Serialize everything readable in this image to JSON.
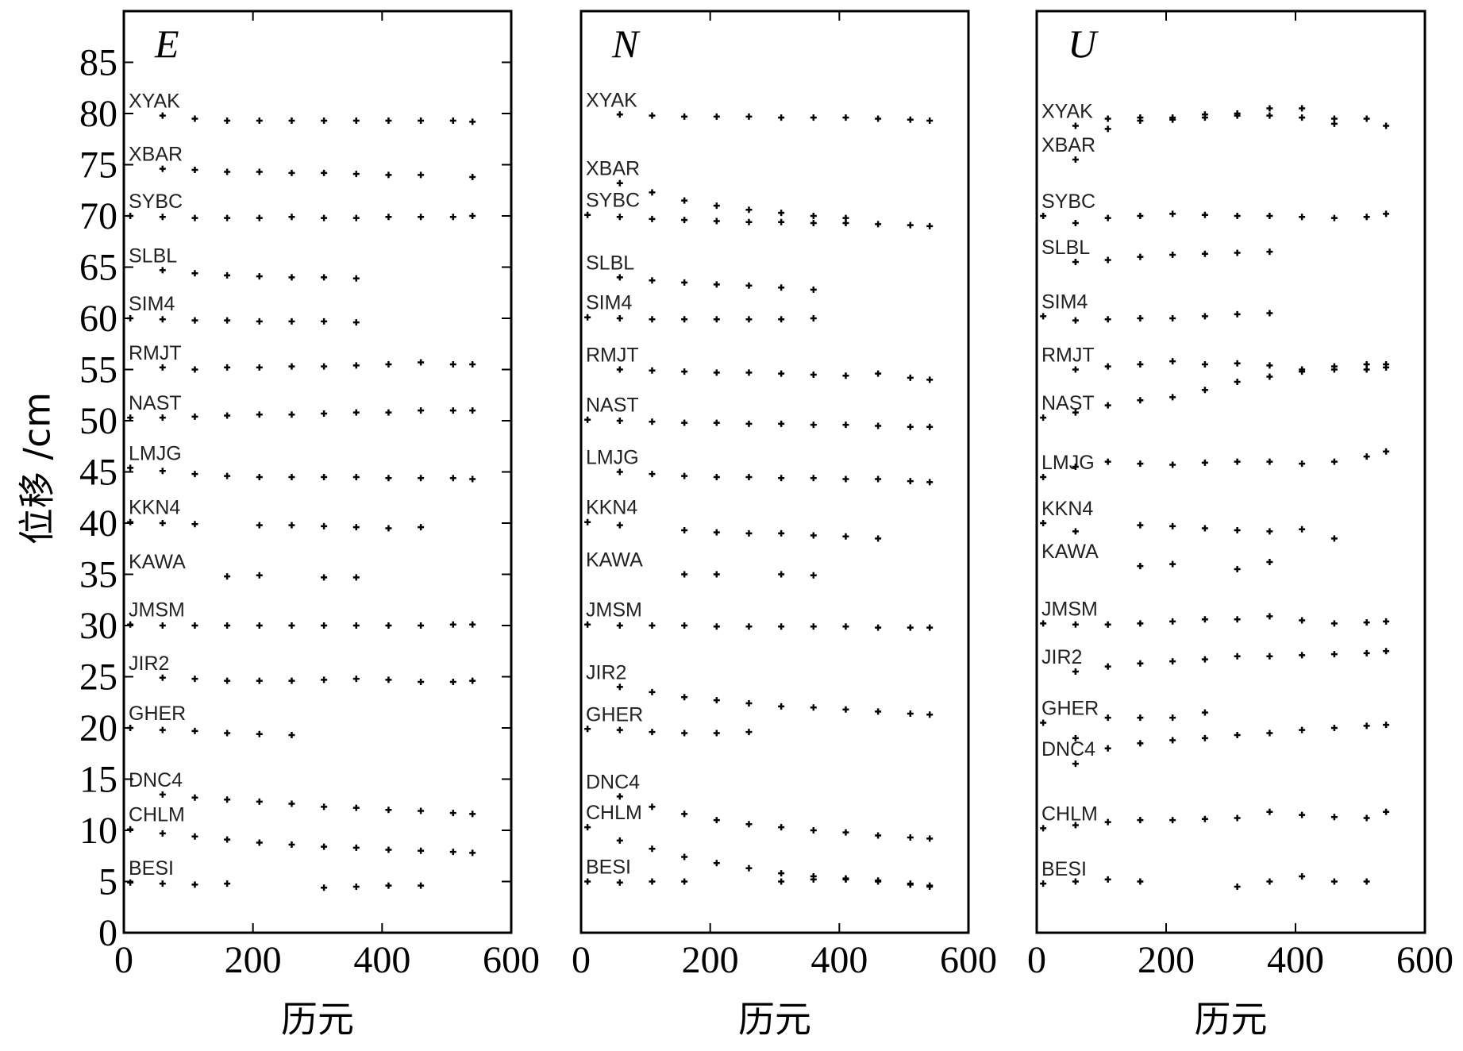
{
  "chart_data": [
    {
      "type": "scatter",
      "title": "E",
      "xlabel": "历元",
      "ylabel": "位移 /cm",
      "xlim": [
        0,
        600
      ],
      "ylim": [
        0,
        90
      ],
      "xticks": [
        0,
        200,
        400,
        600
      ],
      "yticks": [
        0,
        5,
        10,
        15,
        20,
        25,
        30,
        35,
        40,
        45,
        50,
        55,
        60,
        65,
        70,
        75,
        80,
        85
      ],
      "x": [
        10,
        60,
        110,
        160,
        210,
        260,
        310,
        360,
        410,
        460,
        510,
        540
      ],
      "series": [
        {
          "name": "XYAK",
          "color": "#000000",
          "values": [
            null,
            79.8,
            79.5,
            79.3,
            79.3,
            79.3,
            79.3,
            79.3,
            79.3,
            79.3,
            79.3,
            79.2
          ]
        },
        {
          "name": "XBAR",
          "color": "#000000",
          "values": [
            null,
            74.6,
            74.5,
            74.3,
            74.3,
            74.2,
            74.2,
            74.1,
            74.0,
            74.0,
            null,
            73.8
          ]
        },
        {
          "name": "SYBC",
          "color": "#000000",
          "values": [
            70.0,
            69.9,
            69.8,
            69.8,
            69.8,
            69.9,
            69.8,
            69.8,
            69.9,
            69.9,
            69.9,
            70.0
          ]
        },
        {
          "name": "SLBL",
          "color": "#000000",
          "values": [
            null,
            64.7,
            64.4,
            64.2,
            64.1,
            64.0,
            64.0,
            63.9,
            null,
            null,
            null,
            null
          ]
        },
        {
          "name": "SIM4",
          "color": "#000000",
          "values": [
            60.0,
            59.9,
            59.8,
            59.8,
            59.7,
            59.7,
            59.7,
            59.6,
            null,
            null,
            null,
            null
          ]
        },
        {
          "name": "RMJT",
          "color": "#000000",
          "values": [
            null,
            55.2,
            55.0,
            55.2,
            55.2,
            55.3,
            55.3,
            55.4,
            55.5,
            55.7,
            55.5,
            55.5
          ]
        },
        {
          "name": "NAST",
          "color": "#000000",
          "values": [
            50.3,
            50.3,
            50.4,
            50.5,
            50.6,
            50.6,
            50.7,
            50.8,
            50.8,
            51.0,
            51.0,
            51.0
          ]
        },
        {
          "name": "LMJG",
          "color": "#000000",
          "values": [
            45.4,
            45.1,
            44.8,
            44.6,
            44.5,
            44.5,
            44.5,
            44.5,
            44.4,
            44.4,
            44.4,
            44.3
          ]
        },
        {
          "name": "KKN4",
          "color": "#000000",
          "values": [
            40.1,
            40.0,
            39.9,
            null,
            39.8,
            39.8,
            39.7,
            39.6,
            39.5,
            39.6,
            null,
            null
          ]
        },
        {
          "name": "KAWA",
          "color": "#000000",
          "values": [
            null,
            null,
            null,
            34.8,
            34.9,
            null,
            34.7,
            34.7,
            null,
            null,
            null,
            null
          ]
        },
        {
          "name": "JMSM",
          "color": "#000000",
          "values": [
            30.1,
            30.0,
            30.0,
            30.0,
            30.0,
            30.0,
            30.0,
            30.0,
            30.0,
            30.0,
            30.1,
            30.1
          ]
        },
        {
          "name": "JIR2",
          "color": "#000000",
          "values": [
            null,
            24.9,
            24.8,
            24.6,
            24.6,
            24.6,
            24.7,
            24.8,
            24.7,
            24.5,
            24.5,
            24.6
          ]
        },
        {
          "name": "GHER",
          "color": "#000000",
          "values": [
            20.0,
            19.8,
            19.7,
            19.5,
            19.4,
            19.3,
            null,
            null,
            null,
            null,
            null,
            null
          ]
        },
        {
          "name": "DNC4",
          "color": "#000000",
          "values": [
            null,
            13.5,
            13.2,
            13.0,
            12.8,
            12.6,
            12.3,
            12.2,
            12.0,
            11.9,
            11.7,
            11.6
          ]
        },
        {
          "name": "CHLM",
          "color": "#000000",
          "values": [
            10.1,
            9.7,
            9.4,
            9.1,
            8.8,
            8.6,
            8.4,
            8.3,
            8.1,
            8.0,
            7.9,
            7.8
          ]
        },
        {
          "name": "BESI",
          "color": "#000000",
          "values": [
            4.9,
            4.8,
            4.7,
            4.8,
            null,
            null,
            4.4,
            4.5,
            4.6,
            4.6,
            null,
            null
          ]
        }
      ]
    },
    {
      "type": "scatter",
      "title": "N",
      "xlabel": "历元",
      "xlim": [
        0,
        600
      ],
      "ylim": [
        0,
        90
      ],
      "xticks": [
        0,
        200,
        400,
        600
      ],
      "x": [
        10,
        60,
        110,
        160,
        210,
        260,
        310,
        360,
        410,
        460,
        510,
        540
      ],
      "series": [
        {
          "name": "XYAK",
          "color": "#000000",
          "values": [
            null,
            79.9,
            79.8,
            79.7,
            79.7,
            79.7,
            79.6,
            79.6,
            79.6,
            79.5,
            79.4,
            79.3
          ]
        },
        {
          "name": "XBAR",
          "color": "#000000",
          "values": [
            null,
            73.2,
            72.3,
            71.5,
            71.0,
            70.6,
            70.3,
            70.0,
            69.8,
            null,
            null,
            null
          ]
        },
        {
          "name": "SYBC",
          "color": "#000000",
          "values": [
            70.1,
            69.9,
            69.7,
            69.6,
            69.5,
            69.4,
            69.4,
            69.3,
            69.3,
            69.2,
            69.1,
            69.0
          ]
        },
        {
          "name": "SLBL",
          "color": "#000000",
          "values": [
            null,
            64.0,
            63.7,
            63.5,
            63.3,
            63.2,
            63.0,
            62.8,
            null,
            null,
            null,
            null
          ]
        },
        {
          "name": "SIM4",
          "color": "#000000",
          "values": [
            60.1,
            60.0,
            59.9,
            59.9,
            59.9,
            59.9,
            59.9,
            60.0,
            null,
            null,
            null,
            null
          ]
        },
        {
          "name": "RMJT",
          "color": "#000000",
          "values": [
            null,
            55.0,
            54.9,
            54.8,
            54.7,
            54.7,
            54.6,
            54.5,
            54.4,
            54.6,
            54.2,
            54.0
          ]
        },
        {
          "name": "NAST",
          "color": "#000000",
          "values": [
            50.1,
            50.0,
            49.9,
            49.8,
            49.8,
            49.7,
            49.7,
            49.6,
            49.6,
            49.5,
            49.4,
            49.4
          ]
        },
        {
          "name": "LMJG",
          "color": "#000000",
          "values": [
            null,
            45.0,
            44.8,
            44.6,
            44.5,
            44.5,
            44.4,
            44.4,
            44.3,
            44.3,
            44.1,
            44.0
          ]
        },
        {
          "name": "KKN4",
          "color": "#000000",
          "values": [
            40.1,
            39.8,
            null,
            39.3,
            39.1,
            39.0,
            39.0,
            38.8,
            38.7,
            38.5,
            null,
            null
          ]
        },
        {
          "name": "KAWA",
          "color": "#000000",
          "values": [
            null,
            null,
            null,
            35.0,
            35.0,
            null,
            35.0,
            34.9,
            null,
            null,
            null,
            null
          ]
        },
        {
          "name": "JMSM",
          "color": "#000000",
          "values": [
            30.1,
            30.0,
            30.0,
            30.0,
            29.9,
            29.9,
            29.9,
            29.9,
            29.9,
            29.8,
            29.8,
            29.8
          ]
        },
        {
          "name": "JIR2",
          "color": "#000000",
          "values": [
            null,
            24.0,
            23.5,
            23.0,
            22.7,
            22.4,
            22.1,
            22.0,
            21.8,
            21.6,
            21.4,
            21.3
          ]
        },
        {
          "name": "GHER",
          "color": "#000000",
          "values": [
            19.9,
            19.8,
            19.6,
            19.5,
            19.5,
            19.6,
            null,
            null,
            null,
            null,
            null,
            null
          ]
        },
        {
          "name": "DNC4",
          "color": "#000000",
          "values": [
            null,
            13.3,
            12.3,
            11.6,
            11.0,
            10.6,
            10.3,
            10.0,
            9.8,
            9.5,
            9.3,
            9.2
          ]
        },
        {
          "name": "CHLM",
          "color": "#000000",
          "values": [
            10.3,
            9.0,
            8.2,
            7.4,
            6.8,
            6.3,
            5.8,
            5.5,
            5.2,
            5.0,
            4.7,
            4.5
          ]
        },
        {
          "name": "BESI",
          "color": "#000000",
          "values": [
            5.0,
            4.9,
            5.0,
            5.0,
            null,
            null,
            5.0,
            5.2,
            5.3,
            5.1,
            4.8,
            4.6
          ]
        }
      ]
    },
    {
      "type": "scatter",
      "title": "U",
      "xlabel": "历元",
      "xlim": [
        0,
        600
      ],
      "ylim": [
        0,
        90
      ],
      "xticks": [
        0,
        200,
        400,
        600
      ],
      "x": [
        10,
        60,
        110,
        160,
        210,
        260,
        310,
        360,
        410,
        460,
        510,
        540
      ],
      "series": [
        {
          "name": "XYAK",
          "color": "#000000",
          "values": [
            null,
            78.8,
            79.5,
            79.6,
            79.4,
            79.6,
            79.8,
            80.5,
            80.5,
            79.0,
            79.5,
            78.8
          ]
        },
        {
          "name": "XBAR",
          "color": "#000000",
          "values": [
            null,
            75.5,
            78.5,
            79.3,
            79.6,
            79.9,
            80.0,
            79.8,
            79.6,
            79.5,
            null,
            null
          ]
        },
        {
          "name": "SYBC",
          "color": "#000000",
          "values": [
            70.0,
            69.3,
            69.8,
            70.0,
            70.2,
            70.1,
            70.0,
            70.0,
            69.9,
            69.8,
            69.9,
            70.2
          ]
        },
        {
          "name": "SLBL",
          "color": "#000000",
          "values": [
            null,
            65.5,
            65.7,
            66.0,
            66.2,
            66.3,
            66.4,
            66.5,
            null,
            null,
            null,
            null
          ]
        },
        {
          "name": "SIM4",
          "color": "#000000",
          "values": [
            60.2,
            59.8,
            59.9,
            60.0,
            60.0,
            60.2,
            60.4,
            60.5,
            null,
            null,
            null,
            null
          ]
        },
        {
          "name": "RMJT",
          "color": "#000000",
          "values": [
            null,
            55.0,
            55.3,
            55.5,
            55.8,
            55.5,
            55.6,
            55.4,
            55.0,
            55.3,
            55.5,
            55.5
          ]
        },
        {
          "name": "NAST",
          "color": "#000000",
          "values": [
            50.3,
            50.8,
            51.5,
            52.0,
            52.3,
            53.0,
            53.8,
            54.3,
            54.8,
            55.0,
            55.0,
            55.2
          ]
        },
        {
          "name": "LMJG",
          "color": "#000000",
          "values": [
            44.5,
            45.5,
            46.0,
            45.8,
            45.7,
            45.9,
            46.0,
            46.0,
            45.8,
            46.0,
            46.5,
            47.0
          ]
        },
        {
          "name": "KKN4",
          "color": "#000000",
          "values": [
            40.0,
            39.2,
            null,
            39.8,
            39.7,
            39.5,
            39.3,
            39.2,
            39.4,
            38.5,
            null,
            null
          ]
        },
        {
          "name": "KAWA",
          "color": "#000000",
          "values": [
            null,
            null,
            null,
            35.8,
            36.0,
            null,
            35.5,
            36.2,
            null,
            null,
            null,
            null
          ]
        },
        {
          "name": "JMSM",
          "color": "#000000",
          "values": [
            30.2,
            30.1,
            30.1,
            30.2,
            30.4,
            30.6,
            30.6,
            30.9,
            30.5,
            30.2,
            30.3,
            30.4
          ]
        },
        {
          "name": "JIR2",
          "color": "#000000",
          "values": [
            null,
            25.5,
            26.0,
            26.3,
            26.5,
            26.7,
            27.0,
            27.0,
            27.1,
            27.2,
            27.3,
            27.5
          ]
        },
        {
          "name": "GHER",
          "color": "#000000",
          "values": [
            20.5,
            19.0,
            21.0,
            21.0,
            21.0,
            21.5,
            null,
            null,
            null,
            null,
            null,
            null
          ]
        },
        {
          "name": "DNC4",
          "color": "#000000",
          "values": [
            null,
            16.5,
            18.0,
            18.5,
            18.8,
            19.0,
            19.3,
            19.5,
            19.8,
            20.0,
            20.2,
            20.3
          ]
        },
        {
          "name": "CHLM",
          "color": "#000000",
          "values": [
            10.2,
            10.5,
            10.8,
            11.0,
            11.0,
            11.1,
            11.2,
            11.8,
            11.5,
            11.3,
            11.2,
            11.8
          ]
        },
        {
          "name": "BESI",
          "color": "#000000",
          "values": [
            4.8,
            5.0,
            5.2,
            5.0,
            null,
            null,
            4.5,
            5.0,
            5.5,
            5.0,
            5.0,
            null
          ]
        }
      ]
    }
  ]
}
